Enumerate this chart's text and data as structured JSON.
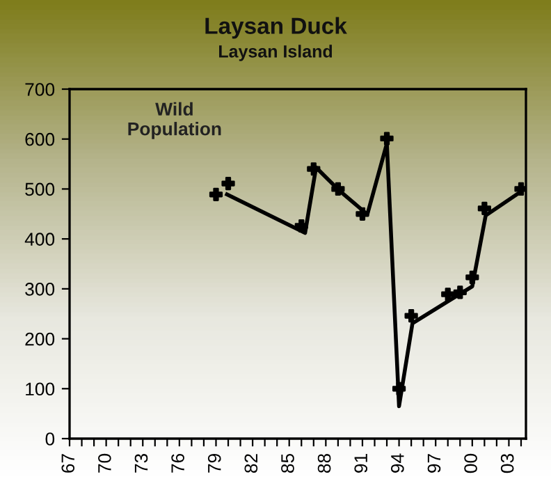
{
  "chart_data": {
    "type": "line",
    "title": "Laysan Duck",
    "subtitle": "Laysan Island",
    "annotations": [
      "Wild\nPopulation"
    ],
    "series": [
      {
        "type": "scatter",
        "color": "#000000",
        "marker": "cross",
        "x": [
          1979,
          1980,
          1986,
          1987,
          1989,
          1991,
          1993,
          1994,
          1995,
          1998,
          1999,
          2000,
          2001,
          2004
        ],
        "values": [
          489,
          511,
          426,
          540,
          500,
          450,
          601,
          100,
          246,
          289,
          293,
          323,
          461,
          500
        ]
      },
      {
        "color": "#000000",
        "x": [
          1979.9,
          1986.3,
          1987.2,
          1989.1,
          1991.4,
          1993.0,
          1994.0,
          1995.1,
          1998,
          1999,
          2000,
          2001.1,
          2004
        ],
        "values": [
          489,
          412,
          543,
          497,
          449,
          591,
          65,
          231,
          275,
          290,
          305,
          447,
          495
        ]
      }
    ],
    "xlim": [
      1967,
      2004.4
    ],
    "ylim": [
      0,
      700
    ],
    "yticks": [
      0,
      100,
      200,
      300,
      400,
      500,
      600,
      700
    ],
    "xticks": [
      {
        "value": 1967,
        "label": "67"
      },
      {
        "value": 1968,
        "label": null
      },
      {
        "value": 1969,
        "label": null
      },
      {
        "value": 1970,
        "label": "70"
      },
      {
        "value": 1971,
        "label": null
      },
      {
        "value": 1972,
        "label": null
      },
      {
        "value": 1973,
        "label": "73"
      },
      {
        "value": 1974,
        "label": null
      },
      {
        "value": 1975,
        "label": null
      },
      {
        "value": 1976,
        "label": "76"
      },
      {
        "value": 1977,
        "label": null
      },
      {
        "value": 1978,
        "label": null
      },
      {
        "value": 1979,
        "label": "79"
      },
      {
        "value": 1980,
        "label": null
      },
      {
        "value": 1981,
        "label": null
      },
      {
        "value": 1982,
        "label": "82"
      },
      {
        "value": 1983,
        "label": null
      },
      {
        "value": 1984,
        "label": null
      },
      {
        "value": 1985,
        "label": "85"
      },
      {
        "value": 1986,
        "label": null
      },
      {
        "value": 1987,
        "label": null
      },
      {
        "value": 1988,
        "label": "88"
      },
      {
        "value": 1989,
        "label": null
      },
      {
        "value": 1990,
        "label": null
      },
      {
        "value": 1991,
        "label": "91"
      },
      {
        "value": 1992,
        "label": null
      },
      {
        "value": 1993,
        "label": null
      },
      {
        "value": 1994,
        "label": "94"
      },
      {
        "value": 1995,
        "label": null
      },
      {
        "value": 1996,
        "label": null
      },
      {
        "value": 1997,
        "label": "97"
      },
      {
        "value": 1998,
        "label": null
      },
      {
        "value": 1999,
        "label": null
      },
      {
        "value": 2000,
        "label": "00"
      },
      {
        "value": 2001,
        "label": null
      },
      {
        "value": 2002,
        "label": null
      },
      {
        "value": 2003,
        "label": "03"
      },
      {
        "value": 2004,
        "label": null
      }
    ],
    "grid": false,
    "legend": false,
    "line_style": "solid"
  }
}
